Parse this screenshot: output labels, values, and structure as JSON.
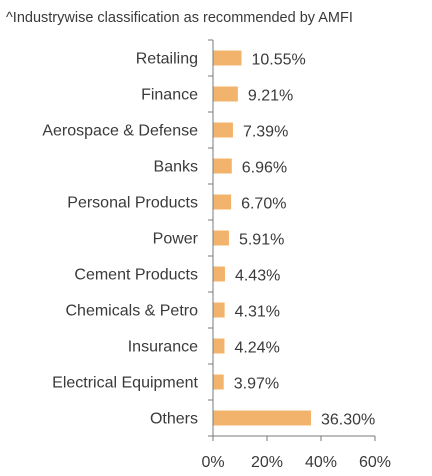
{
  "note": "^Industrywise classification as recommended by AMFI",
  "chart_data": {
    "type": "bar",
    "orientation": "horizontal",
    "categories": [
      "Retailing",
      "Finance",
      "Aerospace & Defense",
      "Banks",
      "Personal Products",
      "Power",
      "Cement Products",
      "Chemicals & Petro",
      "Insurance",
      "Electrical Equipment",
      "Others"
    ],
    "values": [
      10.55,
      9.21,
      7.39,
      6.96,
      6.7,
      5.91,
      4.43,
      4.31,
      4.24,
      3.97,
      36.3
    ],
    "value_labels": [
      "10.55%",
      "9.21%",
      "7.39%",
      "6.96%",
      "6.70%",
      "5.91%",
      "4.43%",
      "4.31%",
      "4.24%",
      "3.97%",
      "36.30%"
    ],
    "xlim": [
      0,
      60
    ],
    "xticks": [
      0,
      20,
      40,
      60
    ],
    "xtick_labels": [
      "0%",
      "20%",
      "40%",
      "60%"
    ],
    "title": "",
    "xlabel": "",
    "ylabel": "",
    "grid": false,
    "legend": "none",
    "bar_color": "#F2B46C",
    "axis_color": "#7a7a7a"
  }
}
